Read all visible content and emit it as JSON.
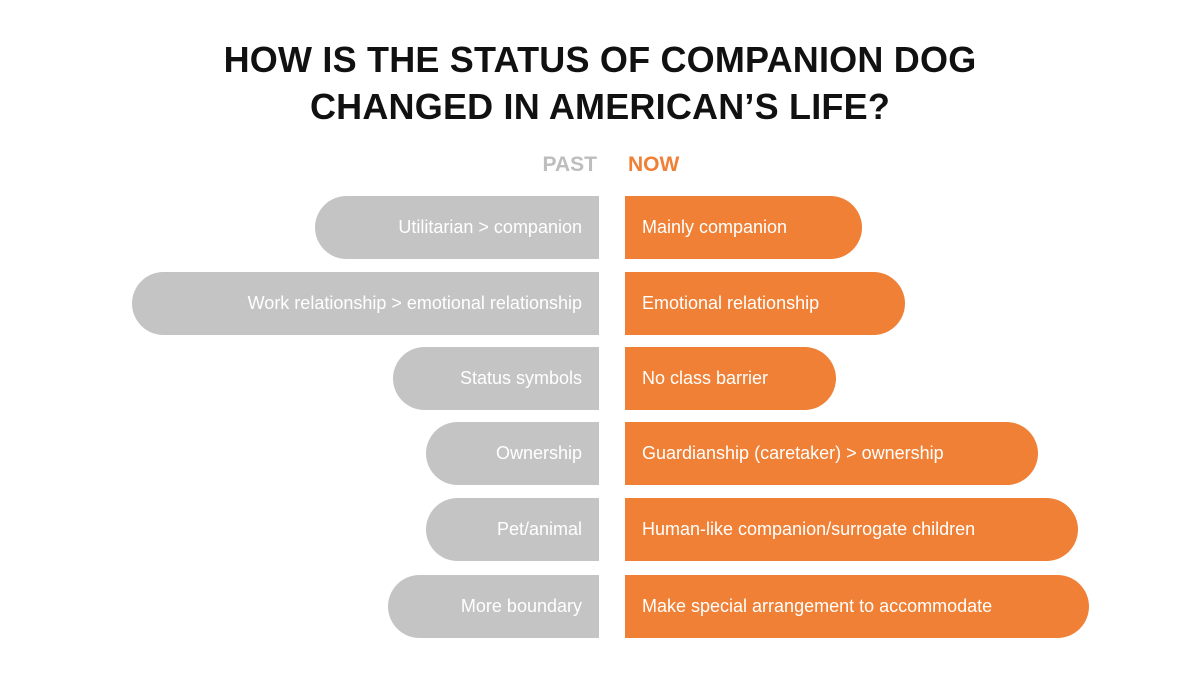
{
  "title": {
    "line1": "HOW IS THE STATUS OF COMPANION DOG",
    "line2": "CHANGED IN AMERICAN’S LIFE?"
  },
  "headers": {
    "past": "PAST",
    "now": "NOW"
  },
  "colors": {
    "past": "#c4c4c4",
    "now": "#f08035",
    "past_header": "#bdbdbd",
    "title": "#111111"
  },
  "rows": [
    {
      "past": "Utilitarian > companion",
      "now": "Mainly companion"
    },
    {
      "past": "Work relationship > emotional relationship",
      "now": "Emotional relationship"
    },
    {
      "past": "Status symbols",
      "now": "No class barrier"
    },
    {
      "past": "Ownership",
      "now": "Guardianship (caretaker) > ownership"
    },
    {
      "past": "Pet/animal",
      "now": "Human-like companion/surrogate children"
    },
    {
      "past": "More boundary",
      "now": "Make special arrangement to accommodate"
    }
  ]
}
